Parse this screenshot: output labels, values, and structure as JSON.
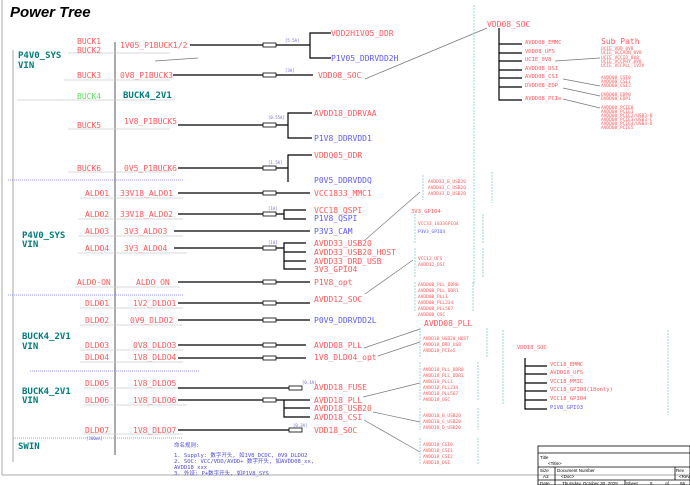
{
  "header": {
    "title": "Power Tree"
  },
  "colors": {
    "supply": "#ff5a5a",
    "peripheral": "#5a5aff",
    "input": "#007c7c",
    "disabled": "#5fe05f"
  },
  "inputs": {
    "p4v0_top": "P4V0_SYS",
    "vin_top": "VIN",
    "p4v0_mid": "P4V0_SYS",
    "vin_mid": "VIN",
    "buck4_a": "BUCK4_2V1",
    "vin_b4a": "VIN",
    "buck4_b": "BUCK4_2V1",
    "vin_b4b": "VIN",
    "swin": "SWIN"
  },
  "regulators": [
    "BUCK1",
    "BUCK2",
    "BUCK3",
    "BUCK4",
    "BUCK5",
    "BUCK6",
    "ALDO1",
    "ALDO2",
    "ALDO3",
    "ALDO4",
    "ALDO-ON",
    "DLDO1",
    "DLDO2",
    "DLDO3",
    "DLDO4",
    "DLDO5",
    "DLDO6",
    "DLDO7"
  ],
  "rails": [
    "1V05_P1BUCK1/2",
    "0V8_P1BUCK3",
    "BUCK4_2V1",
    "1V8_P1BUCK5",
    "0V5_P1BUCK6",
    "33V18_ALDO1",
    "33V18_ALDO2",
    "3V3_ALDO3",
    "3V3_ALDO4",
    "ALDO ON",
    "1V2_DLDO1",
    "0V9_DLDO2",
    "0V8_DLDO3",
    "1V8_DLDO4",
    "1V8_DLDO5",
    "1V8_DLDO6",
    "1V8_DLDO7"
  ],
  "currents": [
    "[5.5A]",
    "[3A]",
    "[0.55A]",
    "[1.5A]",
    "[1A]",
    "[1A]",
    "[0.1A]",
    "[0.3A]",
    "[300mA]"
  ],
  "loads": [
    "VDD2H1V05_DDR",
    "P1V05_DDRVDD2H",
    "VDD08_SOC",
    "AVDD18_DDRVAA",
    "P1V8_DDRVDD1",
    "VDDQ05_DDR",
    "P0V5_DDRVDDQ",
    "VCC1833_MMC1",
    "VCC18_QSPI",
    "P1V8_QSPI",
    "P3V3_CAM",
    "AVDD33_USB20",
    "AVDD33_USB20_HOST",
    "AVDD33_DRD_USB",
    "3V3_GPIO4",
    "P1V8_opt",
    "AVDD12_SOC",
    "P0V9_DDRVDD2L",
    "AVDD08_PLL",
    "1V8_DLDO4_opt",
    "AVDD18_FUSE",
    "AVDD18_PLL",
    "AVDD18_USB20",
    "AVDD18_CSI",
    "VDD18_SOC"
  ],
  "vdd08_soc": {
    "title": "VDD08_SOC",
    "branches": [
      "AVDD08_EMMC",
      "VDD08_UFS",
      "UCIE_0V8",
      "AVDD08_DSI",
      "AVDD08_CSI",
      "DVDD08_EDP",
      "AVDD08_PCIe"
    ],
    "sub_path_title": "Sub Path",
    "ucie": [
      "UCIE_VDD_0V8",
      "UCIE_VCCAON_0V8",
      "UCIE_VCCIO_0V8",
      "UCIE_VCCPHY_0V8",
      "UCIE_VCCPLL_1V2V"
    ],
    "csi": [
      "AVDD08_CSI0",
      "AVDD08_CSI1",
      "AVDD08_CSI2"
    ],
    "edp": [
      "DVDD08_EDP0",
      "DVDD08_EDP1"
    ],
    "pcie": [
      "AVDD08_PCIE0",
      "AVDD08_PCIE1",
      "AVDD08_PCIE2/USB3-B",
      "AVDD08_PCIE3/USB3-C",
      "AVDD08_PCIE4/USB3-D",
      "AVDD08_PCIE5"
    ]
  },
  "sub_boxes": {
    "usb20_33": [
      "AVDD33_B_USB20",
      "AVDD33_C_USB20",
      "AVDD33_D_USB20"
    ],
    "gpio4_title": "3V3_GPIO4",
    "gpio4": [
      "VCC33_1833GPIO4",
      "P3V3_GPIO4"
    ],
    "avdd12": [
      "VCC12_UFS",
      "AVDD12_DSI"
    ],
    "pll08": [
      "AVDD08_PLL_DDR0",
      "AVDD08_PLL_DDR1",
      "AVDD08_PLL1",
      "AVDD08_PLL234",
      "AVDD08_PLL567",
      "AVDD08_OSC"
    ],
    "pll08_title": "AVDD08_PLL",
    "dldo4_opt": [
      "AVDD18_USB20_HOST",
      "AVDD18_DRD_USB",
      "AVDD18_PCIe5"
    ],
    "pll18": [
      "AVDD18_PLL_DDR0",
      "AVDD18_PLL_DDR1",
      "AVDD18_PLL1",
      "AVDD18_PLL234",
      "AVDD18_PLL567",
      "AVDD18_OSC"
    ],
    "usb20_18": [
      "AVDD18_B_USB20",
      "AVDD18_C_USB20",
      "AVDD18_D_USB20"
    ],
    "csi18": [
      "AVDD18_CSI0",
      "AVDD18_CSI1",
      "AVDD18_CSI2",
      "AVDD18_DSI"
    ]
  },
  "vdd18_soc": {
    "title": "VDD18_SOC",
    "branches": [
      "VCC18_EMMC",
      "AVDD18_UFS",
      "VCC18_PMIC",
      "VCC18_GPIO3(18only)",
      "VCC18_GPIO4",
      "P1V8_GPIO3"
    ]
  },
  "notes": {
    "title": "命名规则:",
    "lines": [
      "1. Supply: 数字开头, 如1V8_DCDC, 0V9_DLDO2",
      "2. SOC: VCC/VDD/AVDD+ 数字开头, 如AVDD08_xx,",
      "AVDD18_xxx",
      "3. 外设: P+数字开头, 如P1V8_SYS"
    ]
  },
  "title_block": {
    "title_label": "Title",
    "title_value": "<Title>",
    "size_label": "Size",
    "size_value": "A3",
    "docnum_label": "Document Number",
    "docnum_value": "<Doc>",
    "rev_label": "Rev",
    "rev_value": "<Rev>",
    "date_label": "Date:",
    "date_value": "Thursday, October 30, 2025",
    "sheet_label": "Sheet",
    "sheet_value": "5",
    "of_label": "of",
    "of_value": "56"
  }
}
